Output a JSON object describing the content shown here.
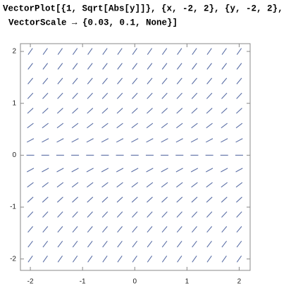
{
  "code": {
    "lines": [
      "VectorPlot[{1, Sqrt[Abs[y]]}, {x, -2, 2}, {y, -2, 2},",
      "VectorScale → {0.03, 0.1, None}]"
    ]
  },
  "chart_data": {
    "type": "vector",
    "x": [
      -2,
      -1.714,
      -1.429,
      -1.143,
      -0.857,
      -0.571,
      -0.286,
      0,
      0.286,
      0.571,
      0.857,
      1.143,
      1.429,
      1.714,
      2
    ],
    "y": [
      2,
      1.714,
      1.429,
      1.143,
      0.857,
      0.571,
      0.286,
      0,
      -0.286,
      -0.571,
      -0.857,
      -1.143,
      -1.429,
      -1.714,
      -2
    ],
    "u": [
      1,
      1,
      1,
      1,
      1,
      1,
      1,
      1,
      1,
      1,
      1,
      1,
      1,
      1,
      1
    ],
    "v": [
      1.414,
      1.309,
      1.195,
      1.069,
      0.926,
      0.756,
      0.535,
      0,
      0.535,
      0.756,
      0.926,
      1.069,
      1.195,
      1.309,
      1.414
    ],
    "color": "#5b6fa6",
    "xlim": [
      -2.19,
      2.21
    ],
    "ylim": [
      -2.22,
      2.15
    ],
    "xticks": [
      -2,
      -1,
      0,
      1,
      2
    ],
    "yticks": [
      -2,
      -1,
      0,
      1,
      2
    ]
  }
}
